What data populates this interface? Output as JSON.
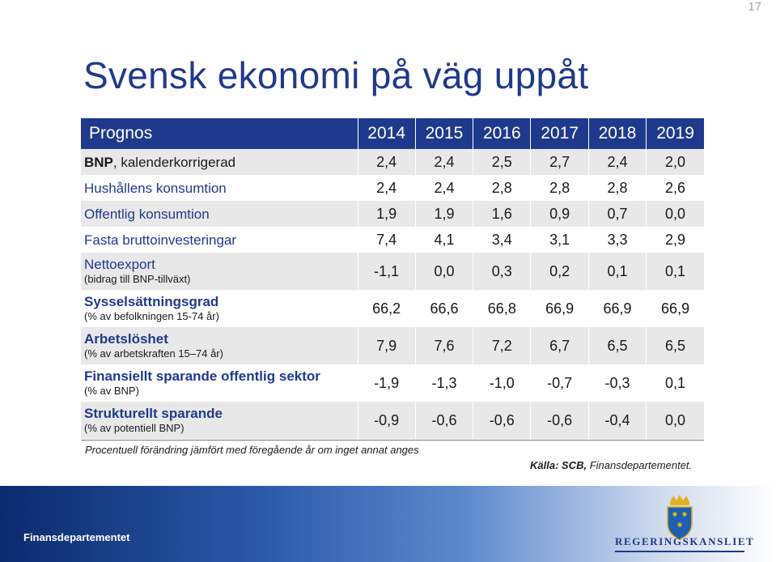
{
  "page_number": "17",
  "title": "Svensk ekonomi på väg uppåt",
  "table": {
    "header_label": "Prognos",
    "years": [
      "2014",
      "2015",
      "2016",
      "2017",
      "2018",
      "2019"
    ],
    "rows": [
      {
        "main_bold": "BNP",
        "main_rest": ", kalenderkorrigerad",
        "sub": "",
        "values": [
          "2,4",
          "2,4",
          "2,5",
          "2,7",
          "2,4",
          "2,0"
        ]
      },
      {
        "main": "Hushållens konsumtion",
        "sub": "",
        "values": [
          "2,4",
          "2,4",
          "2,8",
          "2,8",
          "2,8",
          "2,6"
        ]
      },
      {
        "main": "Offentlig konsumtion",
        "sub": "",
        "values": [
          "1,9",
          "1,9",
          "1,6",
          "0,9",
          "0,7",
          "0,0"
        ]
      },
      {
        "main": "Fasta bruttoinvesteringar",
        "sub": "",
        "values": [
          "7,4",
          "4,1",
          "3,4",
          "3,1",
          "3,3",
          "2,9"
        ]
      },
      {
        "main": "Nettoexport",
        "sub": "(bidrag till BNP-tillväxt)",
        "values": [
          "-1,1",
          "0,0",
          "0,3",
          "0,2",
          "0,1",
          "0,1"
        ]
      },
      {
        "main": "Sysselsättningsgrad",
        "sub": "(% av befolkningen 15-74 år)",
        "values": [
          "66,2",
          "66,6",
          "66,8",
          "66,9",
          "66,9",
          "66,9"
        ]
      },
      {
        "main": "Arbetslöshet",
        "sub": "(% av arbetskraften 15–74 år)",
        "values": [
          "7,9",
          "7,6",
          "7,2",
          "6,7",
          "6,5",
          "6,5"
        ]
      },
      {
        "main": "Finansiellt sparande offentlig sektor",
        "sub": "(% av BNP)",
        "values": [
          "-1,9",
          "-1,3",
          "-1,0",
          "-0,7",
          "-0,3",
          "0,1"
        ]
      },
      {
        "main": "Strukturellt sparande",
        "sub": "(% av potentiell BNP)",
        "values": [
          "-0,9",
          "-0,6",
          "-0,6",
          "-0,6",
          "-0,4",
          "0,0"
        ]
      }
    ]
  },
  "footnote": "Procentuell förändring jämfört med föregående år om inget annat anges",
  "source_label": "Källa: SCB,",
  "source_rest": " Finansdepartementet.",
  "footer_text": "Finansdepartementet",
  "logo_text": "REGERINGSKANSLIET",
  "colors": {
    "brand_blue": "#1f3a8c",
    "row_shade": "#e8e8e8"
  }
}
